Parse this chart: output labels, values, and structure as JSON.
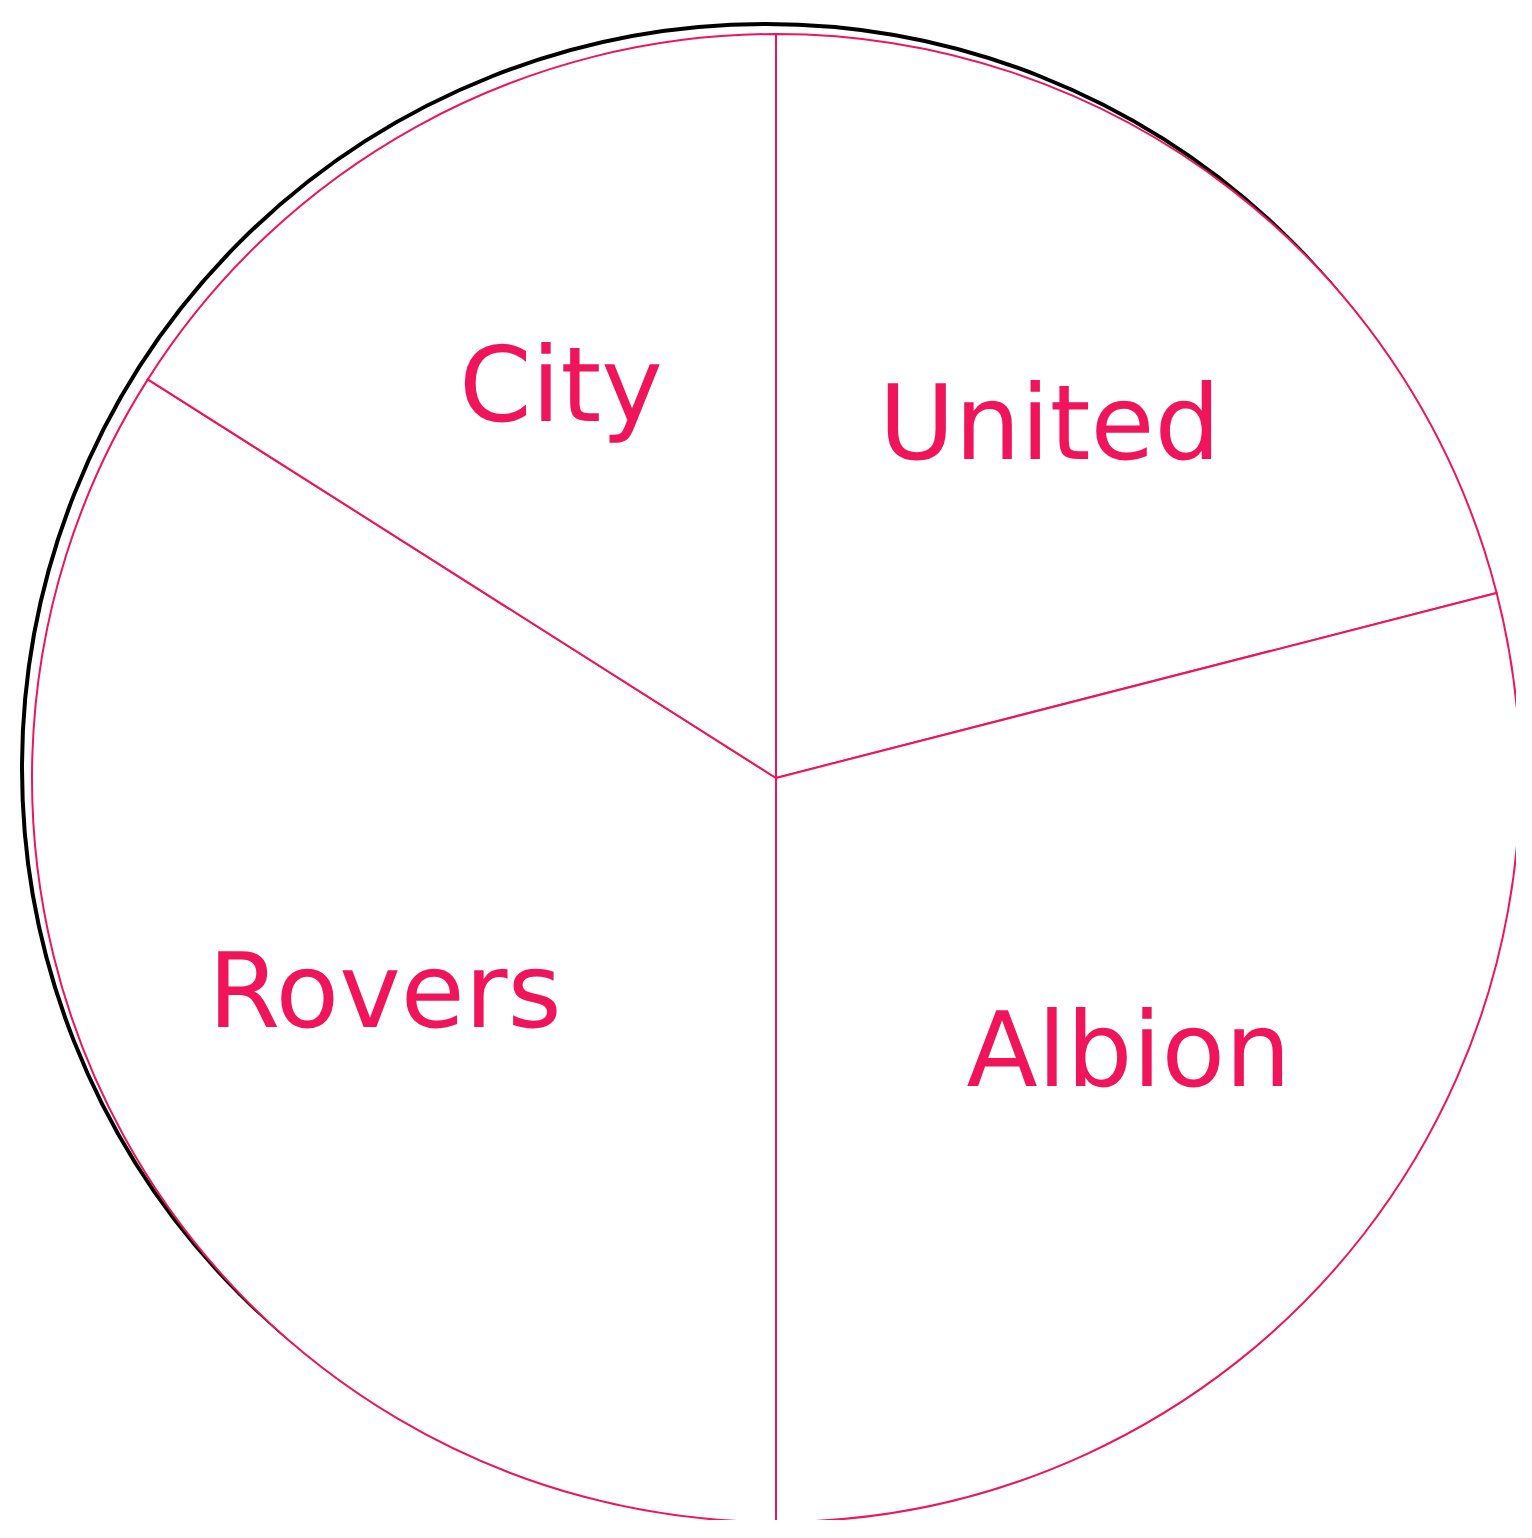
{
  "chart_data": {
    "type": "pie",
    "categories": [
      "United",
      "Albion",
      "Rovers",
      "City"
    ],
    "values": [
      21,
      29,
      34,
      16
    ],
    "colors": [
      "#ffffff",
      "#ffffff",
      "#ffffff",
      "#ffffff"
    ]
  }
}
